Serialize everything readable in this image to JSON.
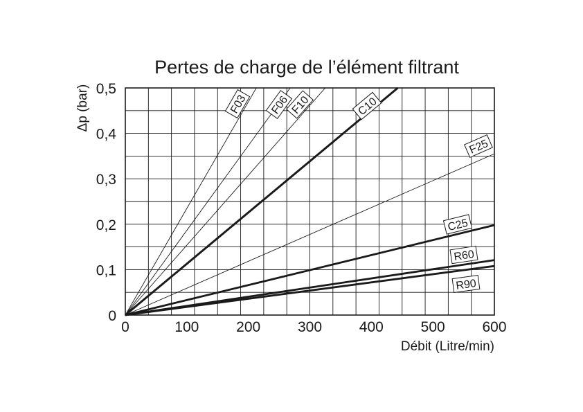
{
  "chart_data": {
    "type": "line",
    "title": "Pertes de charge de l’élément filtrant",
    "xlabel": "Débit (Litre/min)",
    "ylabel": "Δp (bar)",
    "xlim": [
      0,
      600
    ],
    "ylim": [
      0,
      0.5
    ],
    "grid": true,
    "x_ticks": [
      "0",
      "100",
      "200",
      "300",
      "400",
      "500",
      "600"
    ],
    "y_ticks": [
      "0",
      "0,1",
      "0,2",
      "0,3",
      "0,4",
      "0,5"
    ],
    "series": [
      {
        "name": "F03",
        "x": [
          0,
          213
        ],
        "y": [
          0,
          0.5
        ]
      },
      {
        "name": "F06",
        "x": [
          0,
          268
        ],
        "y": [
          0,
          0.5
        ]
      },
      {
        "name": "F10",
        "x": [
          0,
          325
        ],
        "y": [
          0,
          0.5
        ]
      },
      {
        "name": "C10",
        "x": [
          0,
          443
        ],
        "y": [
          0,
          0.5
        ]
      },
      {
        "name": "F25",
        "x": [
          0,
          600
        ],
        "y": [
          0,
          0.355
        ]
      },
      {
        "name": "C25",
        "x": [
          0,
          600
        ],
        "y": [
          0,
          0.198
        ]
      },
      {
        "name": "R60",
        "x": [
          0,
          600
        ],
        "y": [
          0,
          0.121
        ]
      },
      {
        "name": "R90",
        "x": [
          0,
          600
        ],
        "y": [
          0,
          0.108
        ]
      }
    ]
  }
}
